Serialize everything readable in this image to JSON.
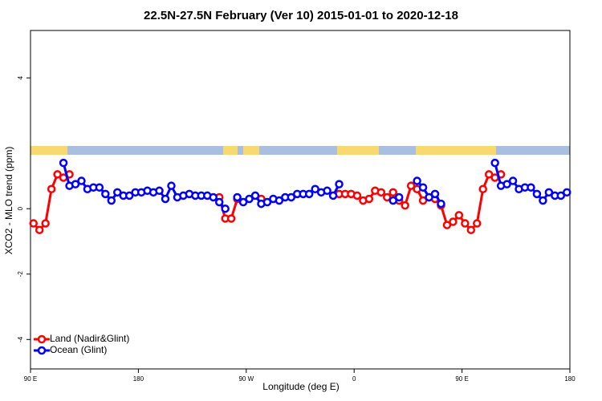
{
  "chart_data": {
    "type": "line",
    "title": "22.5N-27.5N February (Ver 10)   2015-01-01 to 2020-12-18",
    "x_label": "Longitude (deg E)",
    "y_label": "XCO2 - MLO trend (ppm)",
    "x": [
      92.5,
      97.5,
      102.5,
      107.5,
      112.5,
      117.5,
      122.5,
      127.5,
      132.5,
      137.5,
      142.5,
      147.5,
      152.5,
      157.5,
      162.5,
      167.5,
      172.5,
      177.5,
      182.5,
      187.5,
      192.5,
      197.5,
      202.5,
      207.5,
      212.5,
      217.5,
      222.5,
      227.5,
      232.5,
      237.5,
      242.5,
      247.5,
      252.5,
      257.5,
      262.5,
      267.5,
      272.5,
      277.5,
      282.5,
      287.5,
      292.5,
      297.5,
      302.5,
      307.5,
      312.5,
      317.5,
      322.5,
      327.5,
      332.5,
      337.5,
      342.5,
      347.5,
      352.5,
      357.5,
      362.5,
      367.5,
      372.5,
      377.5,
      382.5,
      387.5,
      392.5,
      397.5,
      402.5,
      407.5,
      412.5,
      417.5,
      422.5,
      427.5,
      432.5,
      437.5,
      442.5,
      447.5,
      452.5,
      457.5,
      462.5,
      467.5,
      472.5,
      477.5,
      482.5,
      487.5,
      492.5,
      497.5,
      502.5,
      507.5,
      512.5,
      517.5,
      522.5,
      527.5,
      532.5,
      537.5
    ],
    "series": [
      {
        "name": "Land (Nadir&Glint)",
        "color": "#ff0000",
        "values": [
          -0.45,
          -0.65,
          -0.45,
          0.6,
          1.05,
          0.95,
          1.05,
          null,
          null,
          null,
          null,
          null,
          null,
          null,
          null,
          null,
          null,
          null,
          null,
          null,
          null,
          null,
          null,
          null,
          null,
          null,
          null,
          null,
          null,
          null,
          null,
          0.35,
          -0.3,
          -0.3,
          0.3,
          null,
          null,
          null,
          0.3,
          null,
          null,
          null,
          null,
          null,
          null,
          null,
          null,
          null,
          null,
          null,
          null,
          0.45,
          0.45,
          0.45,
          0.4,
          0.25,
          0.3,
          0.55,
          0.5,
          0.35,
          0.5,
          0.25,
          0.1,
          0.7,
          0.6,
          0.25,
          0.35,
          0.3,
          0.1,
          -0.5,
          -0.4,
          -0.2,
          -0.45,
          -0.65,
          -0.45,
          0.6,
          1.05,
          0.95,
          1.05,
          null,
          null,
          null,
          null,
          null,
          null,
          null,
          null,
          null,
          null,
          null
        ]
      },
      {
        "name": "Ocean (Glint)",
        "color": "#0000ff",
        "values": [
          null,
          null,
          null,
          null,
          null,
          1.4,
          0.7,
          0.75,
          0.85,
          0.6,
          0.65,
          0.65,
          0.45,
          0.25,
          0.5,
          0.4,
          0.4,
          0.5,
          0.5,
          0.55,
          0.5,
          0.55,
          0.3,
          0.7,
          0.35,
          0.4,
          0.45,
          0.4,
          0.4,
          0.4,
          0.35,
          0.2,
          0.0,
          null,
          0.35,
          0.2,
          0.3,
          0.4,
          0.15,
          0.2,
          0.3,
          0.25,
          0.35,
          0.35,
          0.45,
          0.45,
          0.45,
          0.6,
          0.5,
          0.55,
          0.4,
          0.75,
          null,
          null,
          null,
          null,
          null,
          null,
          null,
          null,
          0.25,
          0.35,
          null,
          null,
          0.85,
          0.65,
          0.35,
          0.45,
          0.15,
          null,
          null,
          null,
          null,
          null,
          null,
          null,
          null,
          1.4,
          0.7,
          0.75,
          0.85,
          0.6,
          0.65,
          0.65,
          0.45,
          0.25,
          0.5,
          0.4,
          0.4,
          0.5
        ]
      }
    ],
    "xlim": [
      90,
      540
    ],
    "xticks": [
      {
        "value": 90,
        "label": "90 E"
      },
      180,
      {
        "value": 270,
        "label": "90 W"
      },
      {
        "value": 360,
        "label": "0"
      },
      {
        "value": 450,
        "label": "90 E"
      },
      {
        "value": 540,
        "label": "180"
      }
    ],
    "ylim": [
      -4.9,
      5.45
    ],
    "yticks": [
      -4,
      -2,
      0,
      4
    ],
    "legend": "bottomleft"
  }
}
